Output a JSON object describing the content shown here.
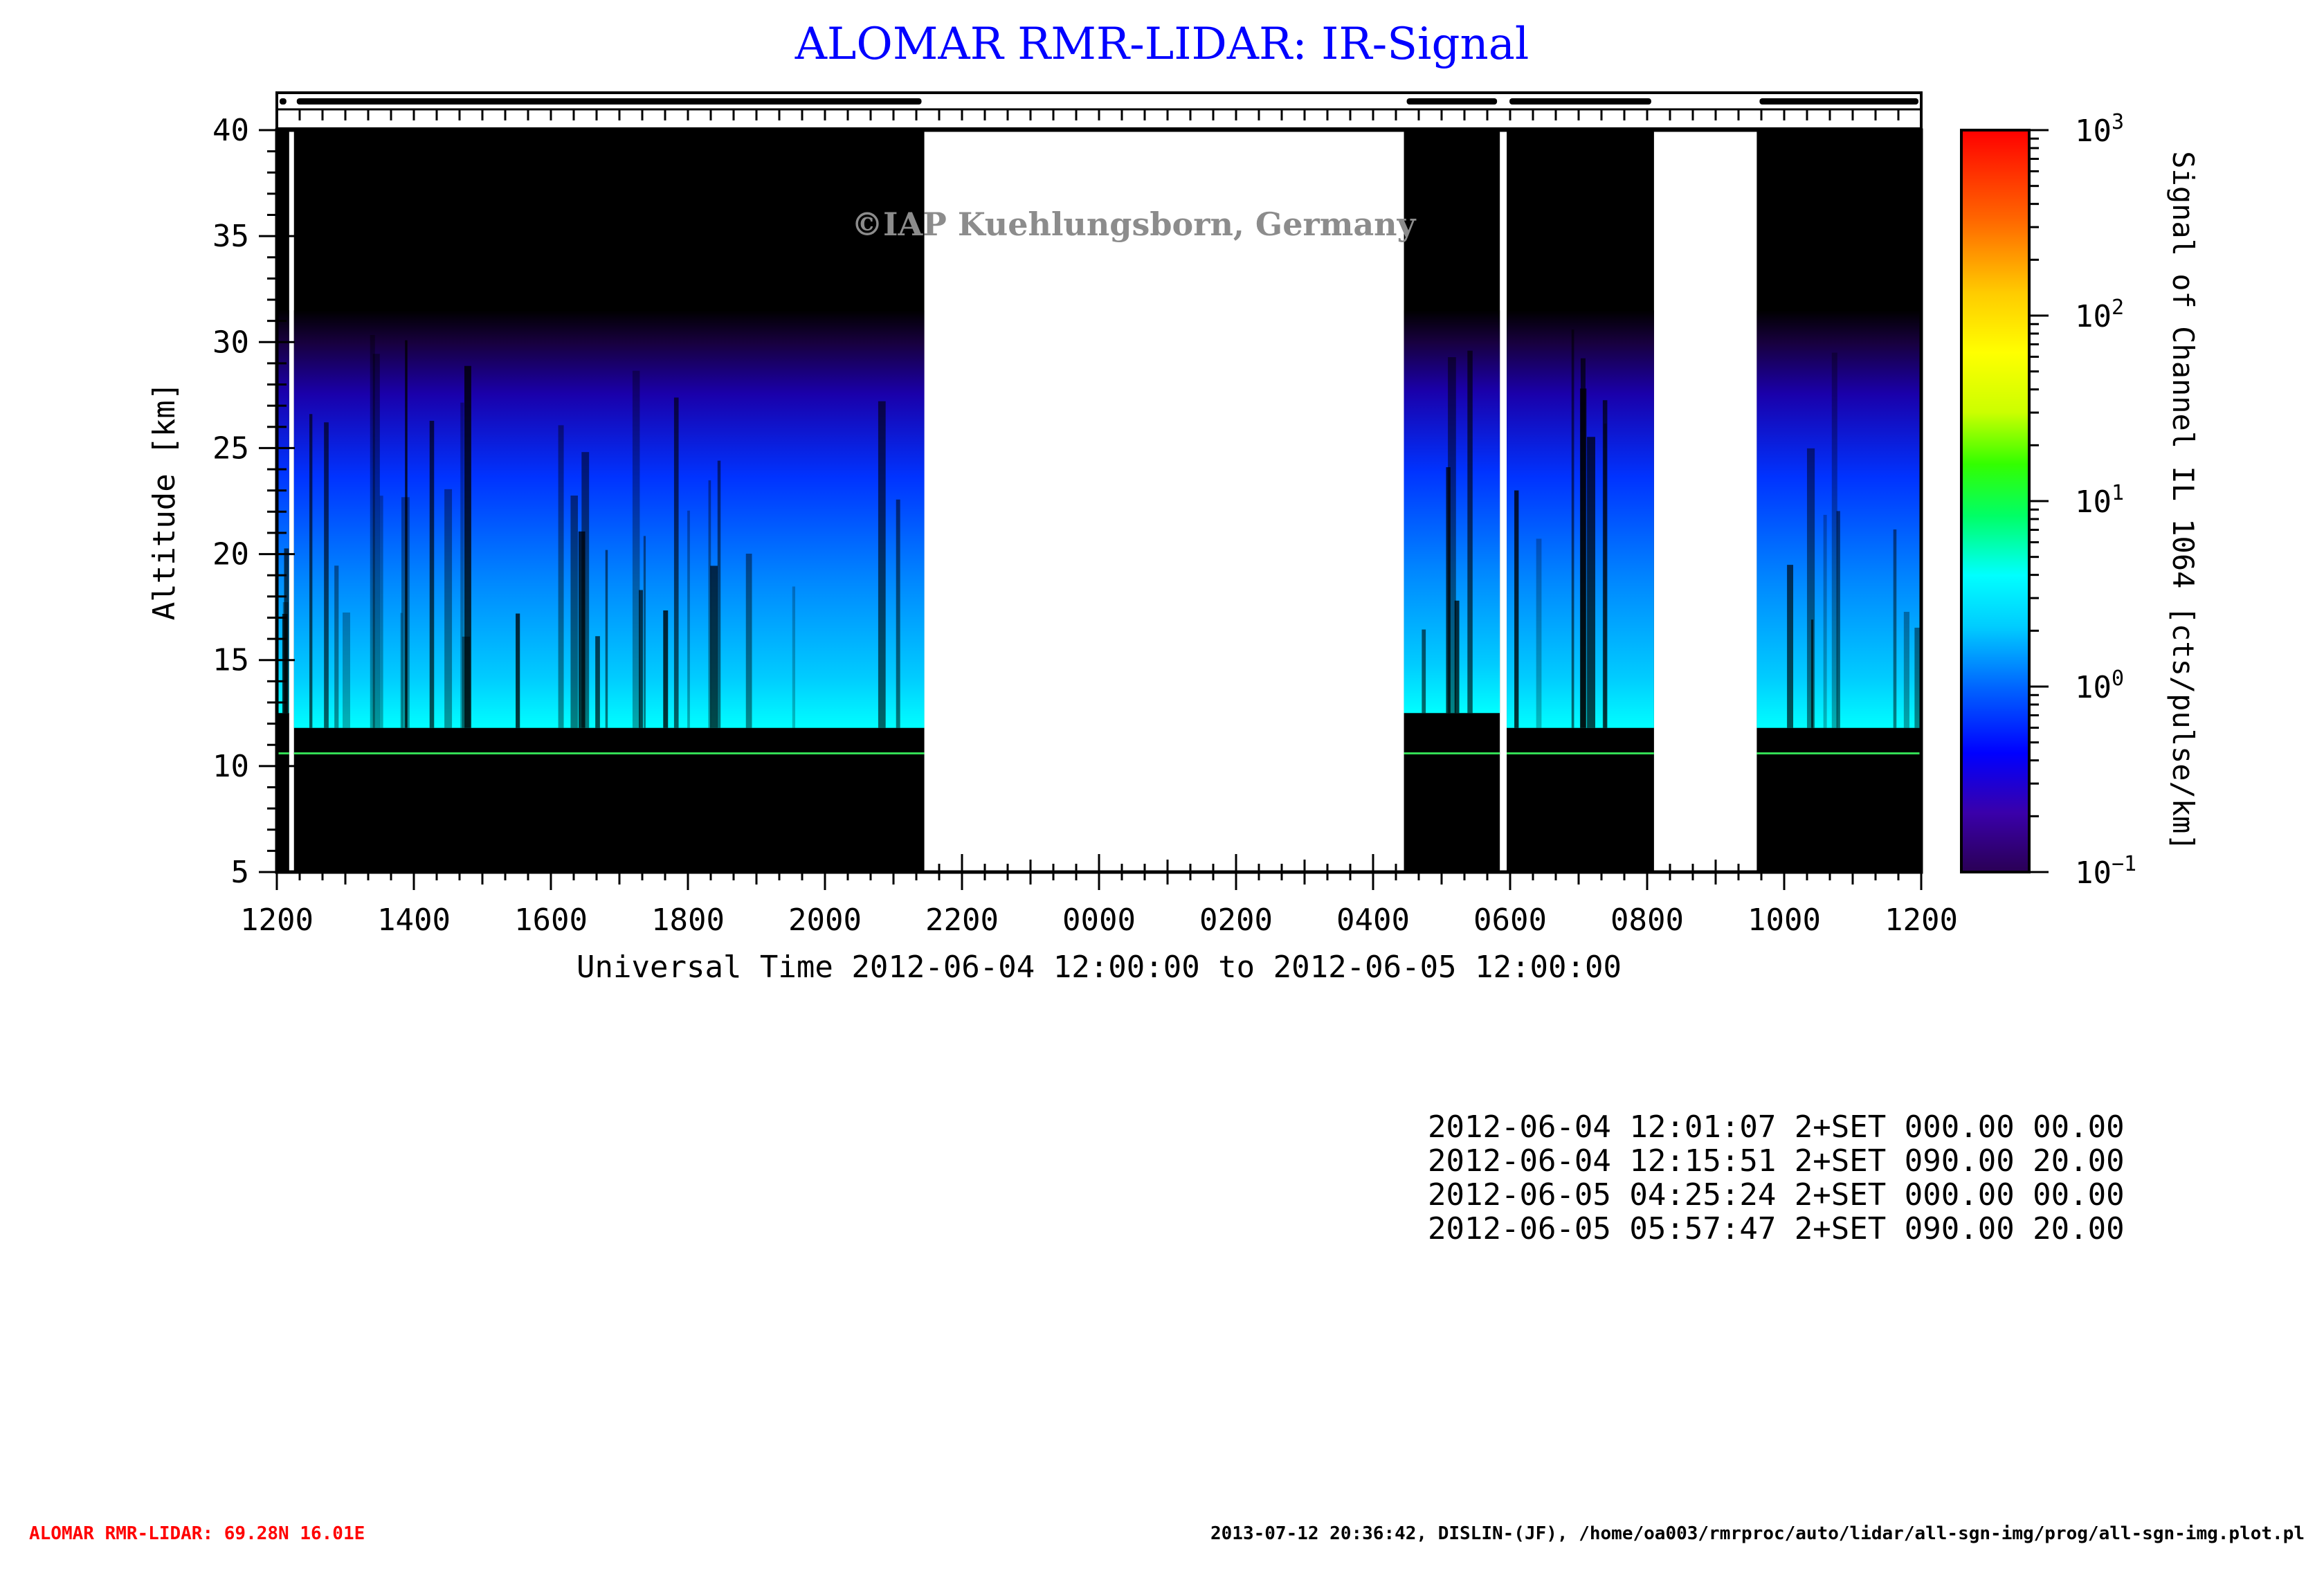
{
  "chart_data": {
    "type": "heatmap",
    "title": "ALOMAR RMR-LIDAR: IR-Signal",
    "xlabel": "Universal Time 2012-06-04 12:00:00 to 2012-06-05 12:00:00",
    "ylabel": "Altitude [km]",
    "x_range_hours": [
      0,
      24
    ],
    "x_tick_labels": [
      "1200",
      "1400",
      "1600",
      "1800",
      "2000",
      "2200",
      "0000",
      "0200",
      "0400",
      "0600",
      "0800",
      "1000",
      "1200"
    ],
    "ylim": [
      5,
      40
    ],
    "y_ticks": [
      5,
      10,
      15,
      20,
      25,
      30,
      35,
      40
    ],
    "colorbar": {
      "label": "Signal of Channel IL 1064 [cts/pulse/km]",
      "scale": "log",
      "range": [
        0.1,
        1000
      ],
      "tick_bases": [
        "10",
        "10",
        "10",
        "10",
        "10"
      ],
      "tick_exponents": [
        "3",
        "2",
        "1",
        "0",
        "−1"
      ],
      "colors": [
        "#2a0055",
        "#3a00aa",
        "#0000ff",
        "#0066ff",
        "#00ccff",
        "#00ffff",
        "#00ff66",
        "#33ff00",
        "#ccff00",
        "#ffff00",
        "#ffcc00",
        "#ff6600",
        "#ff0000"
      ]
    },
    "data_segments": [
      {
        "start_h": 0.0,
        "end_h": 0.18,
        "cloud_base_km": 12.5
      },
      {
        "start_h": 0.25,
        "end_h": 9.45,
        "cloud_base_km": 11.8
      },
      {
        "start_h": 16.45,
        "end_h": 17.85,
        "cloud_base_km": 12.5
      },
      {
        "start_h": 17.95,
        "end_h": 20.1,
        "cloud_base_km": 11.8
      },
      {
        "start_h": 21.6,
        "end_h": 24.0,
        "cloud_base_km": 11.8
      }
    ],
    "reference_line_km": 10.6,
    "reference_line_color": "#33dd55",
    "watermark": "©IAP Kuehlungsborn, Germany"
  },
  "info_lines": [
    "2012-06-04 12:01:07 2+SET 000.00 00.00",
    "2012-06-04 12:15:51 2+SET 090.00 20.00",
    "2012-06-05 04:25:24 2+SET 000.00 00.00",
    "2012-06-05 05:57:47 2+SET 090.00 20.00"
  ],
  "footer": {
    "left": "ALOMAR RMR-LIDAR: 69.28N 16.01E",
    "right": "2013-07-12 20:36:42, DISLIN-(JF), /home/oa003/rmrproc/auto/lidar/all-sgn-img/prog/all-sgn-img.plot.pl",
    "left_color": "#ff0000",
    "right_color": "#000000"
  }
}
